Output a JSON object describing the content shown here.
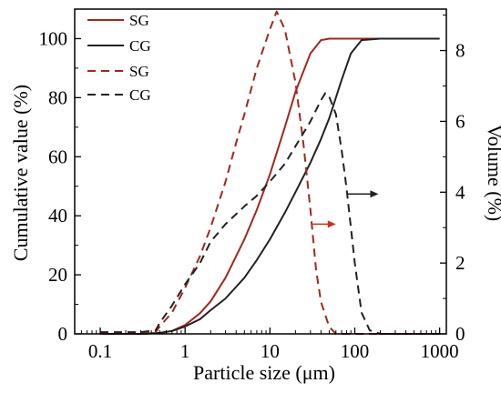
{
  "chart_data": {
    "type": "line",
    "xlabel": "Particle size  (μm)",
    "ylabel_left": "Cumulative value (%)",
    "ylabel_right": "Volume (%)",
    "x_scale": "log",
    "xlim": [
      0.05,
      1200
    ],
    "ylim_left": [
      0,
      110
    ],
    "ylim_right": [
      0,
      9.17
    ],
    "x_ticks": [
      0.1,
      1,
      10,
      100,
      1000
    ],
    "x_tick_labels": [
      "0.1",
      "1",
      "10",
      "100",
      "1000"
    ],
    "y_left_ticks": [
      0,
      20,
      40,
      60,
      80,
      100
    ],
    "y_left_tick_labels": [
      "0",
      "20",
      "40",
      "60",
      "80",
      "100"
    ],
    "y_right_ticks": [
      0,
      2,
      4,
      6,
      8
    ],
    "y_right_tick_labels": [
      "0",
      "2",
      "4",
      "6",
      "8"
    ],
    "grid": false,
    "legend_position": "top-left",
    "series": [
      {
        "name": "SG",
        "axis": "left",
        "style": "solid",
        "color": "#a0281e",
        "x": [
          0.1,
          0.3,
          0.5,
          0.7,
          1,
          1.5,
          2,
          3,
          5,
          7,
          10,
          15,
          20,
          30,
          40,
          50,
          70,
          100,
          200,
          500,
          1000
        ],
        "y": [
          0,
          0,
          0.3,
          1,
          3,
          7,
          11,
          19,
          32,
          42,
          54,
          70,
          82,
          95,
          99.5,
          100,
          100,
          100,
          100,
          100,
          100
        ]
      },
      {
        "name": "CG",
        "axis": "left",
        "style": "solid",
        "color": "#222222",
        "x": [
          0.1,
          0.3,
          0.5,
          0.7,
          1,
          1.5,
          2,
          3,
          5,
          7,
          10,
          15,
          20,
          30,
          40,
          50,
          70,
          90,
          120,
          200,
          500,
          1000
        ],
        "y": [
          0,
          0,
          0.3,
          1,
          2.5,
          5,
          8,
          12,
          19,
          25,
          32,
          41,
          48,
          58,
          66,
          73,
          86,
          95,
          99.5,
          100,
          100,
          100
        ]
      },
      {
        "name": "SG",
        "axis": "right",
        "style": "dashed",
        "color": "#a0281e",
        "x": [
          0.1,
          0.3,
          0.45,
          0.5,
          0.7,
          1,
          1.5,
          2,
          3,
          4,
          5,
          7,
          10,
          12,
          15,
          20,
          25,
          30,
          35,
          40,
          50,
          60,
          100,
          300,
          1000
        ],
        "y": [
          0,
          0,
          0.05,
          0.2,
          0.6,
          1.3,
          2.2,
          3,
          4.3,
          5.4,
          6.2,
          7.5,
          8.6,
          9.1,
          8.6,
          7.1,
          5.3,
          3.5,
          1.8,
          0.9,
          0.2,
          0,
          0,
          0,
          0
        ]
      },
      {
        "name": "CG",
        "axis": "right",
        "style": "dashed",
        "color": "#222222",
        "x": [
          0.1,
          0.3,
          0.45,
          0.5,
          0.7,
          1,
          1.5,
          2,
          3,
          5,
          7,
          10,
          15,
          20,
          30,
          40,
          45,
          50,
          60,
          70,
          80,
          100,
          120,
          150,
          200,
          300,
          1000
        ],
        "y": [
          0.05,
          0.05,
          0.1,
          0.3,
          0.8,
          1.4,
          2,
          2.6,
          3.1,
          3.6,
          3.9,
          4.3,
          4.8,
          5.3,
          6,
          6.6,
          6.8,
          6.7,
          6.2,
          5.2,
          4.1,
          2,
          0.6,
          0.1,
          0,
          0,
          0
        ]
      }
    ],
    "annotations": [
      {
        "name": "arrow-sg-to-left-axis",
        "x_from": 32,
        "x_to": 60,
        "axis": "right",
        "y": 3.1,
        "color": "#c8321e"
      },
      {
        "name": "arrow-cg-to-right-axis",
        "x_from": 80,
        "x_to": 190,
        "axis": "right",
        "y": 3.95,
        "color": "#222222"
      }
    ]
  }
}
